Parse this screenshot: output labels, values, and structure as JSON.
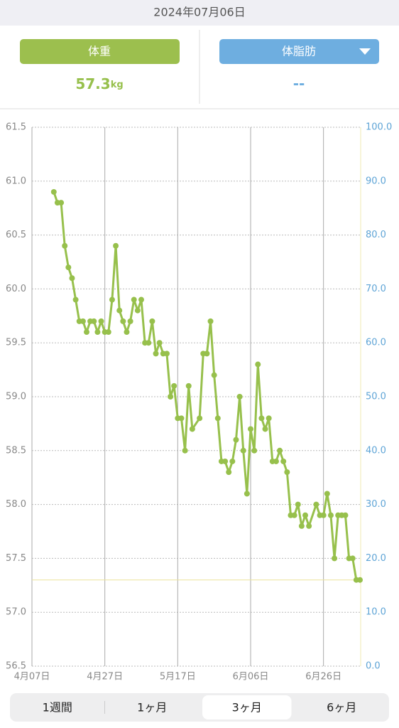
{
  "header": {
    "date": "2024年07月06日"
  },
  "summary": {
    "weight_label": "体重",
    "weight_value": "57.3",
    "weight_unit": "kg",
    "fat_label": "体脂肪",
    "fat_value": "--"
  },
  "chart_data": {
    "type": "line",
    "x": [
      "4月13日",
      "4月14日",
      "4月15日",
      "4月16日",
      "4月17日",
      "4月18日",
      "4月19日",
      "4月20日",
      "4月21日",
      "4月22日",
      "4月23日",
      "4月24日",
      "4月25日",
      "4月26日",
      "4月27日",
      "4月28日",
      "4月29日",
      "4月30日",
      "5月01日",
      "5月02日",
      "5月03日",
      "5月04日",
      "5月05日",
      "5月06日",
      "5月07日",
      "5月08日",
      "5月09日",
      "5月10日",
      "5月11日",
      "5月12日",
      "5月13日",
      "5月14日",
      "5月15日",
      "5月16日",
      "5月17日",
      "5月18日",
      "5月19日",
      "5月20日",
      "5月21日",
      "5月23日",
      "5月24日",
      "5月25日",
      "5月26日",
      "5月27日",
      "5月28日",
      "5月29日",
      "5月30日",
      "5月31日",
      "6月01日",
      "6月02日",
      "6月03日",
      "6月04日",
      "6月05日",
      "6月06日",
      "6月07日",
      "6月08日",
      "6月09日",
      "6月10日",
      "6月11日",
      "6月12日",
      "6月13日",
      "6月14日",
      "6月15日",
      "6月16日",
      "6月17日",
      "6月18日",
      "6月19日",
      "6月20日",
      "6月21日",
      "6月22日",
      "6月24日",
      "6月25日",
      "6月26日",
      "6月27日",
      "6月28日",
      "6月29日",
      "6月30日",
      "7月01日",
      "7月02日",
      "7月03日",
      "7月04日",
      "7月05日",
      "7月06日"
    ],
    "series": [
      {
        "name": "体重",
        "color": "#97c04c",
        "values": [
          60.9,
          60.8,
          60.8,
          60.4,
          60.2,
          60.1,
          59.9,
          59.7,
          59.7,
          59.6,
          59.7,
          59.7,
          59.6,
          59.7,
          59.6,
          59.6,
          59.9,
          60.4,
          59.8,
          59.7,
          59.6,
          59.7,
          59.9,
          59.8,
          59.9,
          59.5,
          59.5,
          59.7,
          59.4,
          59.5,
          59.4,
          59.4,
          59.0,
          59.1,
          58.8,
          58.8,
          58.5,
          59.1,
          58.7,
          58.8,
          59.4,
          59.4,
          59.7,
          59.2,
          58.8,
          58.4,
          58.4,
          58.3,
          58.4,
          58.6,
          59.0,
          58.5,
          58.1,
          58.7,
          58.5,
          59.3,
          58.8,
          58.7,
          58.8,
          58.4,
          58.4,
          58.5,
          58.4,
          58.3,
          57.9,
          57.9,
          58.0,
          57.8,
          57.9,
          57.8,
          58.0,
          57.9,
          57.9,
          58.1,
          57.9,
          57.5,
          57.9,
          57.9,
          57.9,
          57.5,
          57.5,
          57.3,
          57.3
        ]
      }
    ],
    "reference_line": 57.3,
    "xlim": [
      "4月07日",
      "7月06日"
    ],
    "xticks": [
      "4月07日",
      "4月27日",
      "5月17日",
      "6月06日",
      "6月26日"
    ],
    "ylim": [
      56.5,
      61.5
    ],
    "yticks": [
      56.5,
      {
        "value": 57,
        "label": "57.0"
      },
      57.5,
      {
        "value": 58,
        "label": "58.0"
      },
      58.5,
      {
        "value": 59,
        "label": "59.0"
      },
      59.5,
      {
        "value": 60,
        "label": "60.0"
      },
      60.5,
      {
        "value": 61,
        "label": "61.0"
      },
      61.5
    ],
    "y2lim": [
      0,
      100
    ],
    "y2ticks": [
      {
        "value": 0,
        "label": "0.0"
      },
      {
        "value": 10,
        "label": "10.0"
      },
      {
        "value": 20,
        "label": "20.0"
      },
      {
        "value": 30,
        "label": "30.0"
      },
      {
        "value": 40,
        "label": "40.0"
      },
      {
        "value": 50,
        "label": "50.0"
      },
      {
        "value": 60,
        "label": "60.0"
      },
      {
        "value": 70,
        "label": "70.0"
      },
      {
        "value": 80,
        "label": "80.0"
      },
      {
        "value": 90,
        "label": "90.0"
      },
      {
        "value": 100,
        "label": "100.0"
      }
    ],
    "grid": true
  },
  "tabs": {
    "items": [
      "1週間",
      "1ヶ月",
      "3ヶ月",
      "6ヶ月"
    ],
    "selected": 2
  }
}
